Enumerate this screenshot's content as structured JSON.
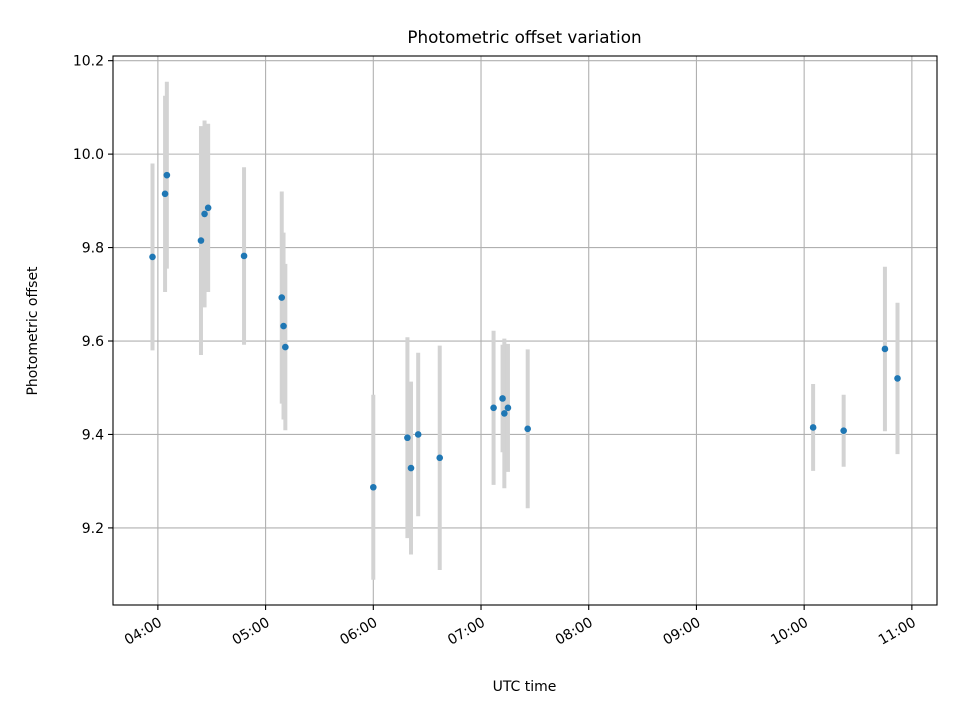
{
  "chart_data": {
    "type": "scatter",
    "title": "Photometric offset variation",
    "xlabel": "UTC time",
    "ylabel": "Photometric offset",
    "x_tick_labels": [
      "04:00",
      "05:00",
      "06:00",
      "07:00",
      "08:00",
      "09:00",
      "10:00",
      "11:00"
    ],
    "y_tick_labels": [
      "9.2",
      "9.4",
      "9.6",
      "9.8",
      "10.0",
      "10.2"
    ],
    "xlim": [
      "03:35",
      "11:14"
    ],
    "ylim": [
      9.035,
      10.21
    ],
    "grid": true,
    "colors": {
      "marker": "#1f77b4",
      "errorbar": "#d3d3d3",
      "grid": "#b0b0b0"
    },
    "points": [
      {
        "x": "03:57",
        "y": 9.78,
        "yerr": 0.2
      },
      {
        "x": "04:04",
        "y": 9.915,
        "yerr": 0.21
      },
      {
        "x": "04:05",
        "y": 9.955,
        "yerr": 0.2
      },
      {
        "x": "04:24",
        "y": 9.815,
        "yerr": 0.245
      },
      {
        "x": "04:26",
        "y": 9.872,
        "yerr": 0.2
      },
      {
        "x": "04:28",
        "y": 9.885,
        "yerr": 0.18
      },
      {
        "x": "04:48",
        "y": 9.782,
        "yerr": 0.19
      },
      {
        "x": "05:09",
        "y": 9.693,
        "yerr": 0.227
      },
      {
        "x": "05:10",
        "y": 9.632,
        "yerr": 0.2
      },
      {
        "x": "05:11",
        "y": 9.587,
        "yerr": 0.178
      },
      {
        "x": "06:00",
        "y": 9.287,
        "yerr": 0.198
      },
      {
        "x": "06:19",
        "y": 9.393,
        "yerr": 0.215
      },
      {
        "x": "06:21",
        "y": 9.328,
        "yerr": 0.185
      },
      {
        "x": "06:25",
        "y": 9.4,
        "yerr": 0.175
      },
      {
        "x": "06:37",
        "y": 9.35,
        "yerr": 0.24
      },
      {
        "x": "07:07",
        "y": 9.457,
        "yerr": 0.165
      },
      {
        "x": "07:12",
        "y": 9.477,
        "yerr": 0.115
      },
      {
        "x": "07:13",
        "y": 9.445,
        "yerr": 0.16
      },
      {
        "x": "07:15",
        "y": 9.457,
        "yerr": 0.137
      },
      {
        "x": "07:26",
        "y": 9.412,
        "yerr": 0.17
      },
      {
        "x": "10:05",
        "y": 9.415,
        "yerr": 0.093
      },
      {
        "x": "10:22",
        "y": 9.408,
        "yerr": 0.077
      },
      {
        "x": "10:45",
        "y": 9.583,
        "yerr": 0.176
      },
      {
        "x": "10:52",
        "y": 9.52,
        "yerr": 0.162
      }
    ]
  }
}
